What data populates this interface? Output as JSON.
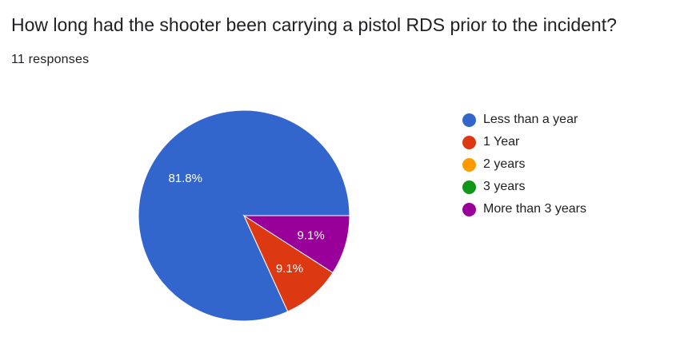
{
  "question": {
    "title": "How long had the shooter been carrying a pistol RDS prior to the incident?",
    "responses": "11 responses"
  },
  "chart_data": {
    "type": "pie",
    "categories": [
      "Less than a year",
      "1 Year",
      "2 years",
      "3 years",
      "More than 3 years"
    ],
    "values": [
      81.8,
      9.1,
      0,
      0,
      9.1
    ],
    "labels": [
      "81.8%",
      "9.1%",
      "",
      "",
      "9.1%"
    ],
    "colors": [
      "#3366cc",
      "#dc3912",
      "#ff9900",
      "#109618",
      "#990099"
    ],
    "legend_position": "right"
  }
}
